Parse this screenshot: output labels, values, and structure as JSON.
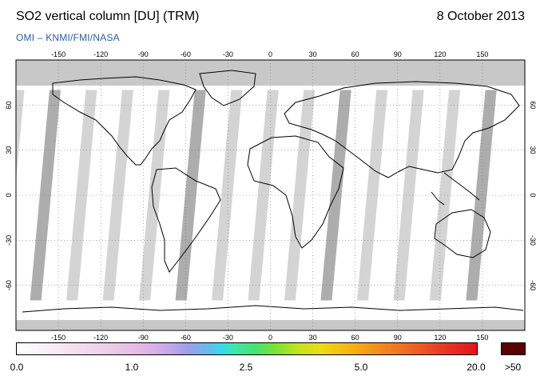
{
  "header": {
    "title": "SO2 vertical column [DU] (TRM)",
    "date": "8 October 2013",
    "credit": "OMI  –  KNMI/FMI/NASA"
  },
  "map": {
    "lon_ticks": [
      "-150",
      "-120",
      "-90",
      "-60",
      "-30",
      "0",
      "30",
      "60",
      "90",
      "120",
      "150"
    ],
    "lat_ticks_left": [
      "60",
      "30",
      "0",
      "-30",
      "-60"
    ],
    "lat_ticks_right": [
      "60",
      "30",
      "0",
      "-30",
      "-60"
    ],
    "colors": {
      "no_data": "#c8c8c8",
      "swath": "#d2d2d2",
      "swath_dark": "#a9a9a9",
      "land_edge": "#000000"
    }
  },
  "colorbar": {
    "labels": [
      "0.0",
      "1.0",
      "2.5",
      "5.0",
      "20.0"
    ],
    "over_label": ">50",
    "over_color": "#5a0202"
  }
}
